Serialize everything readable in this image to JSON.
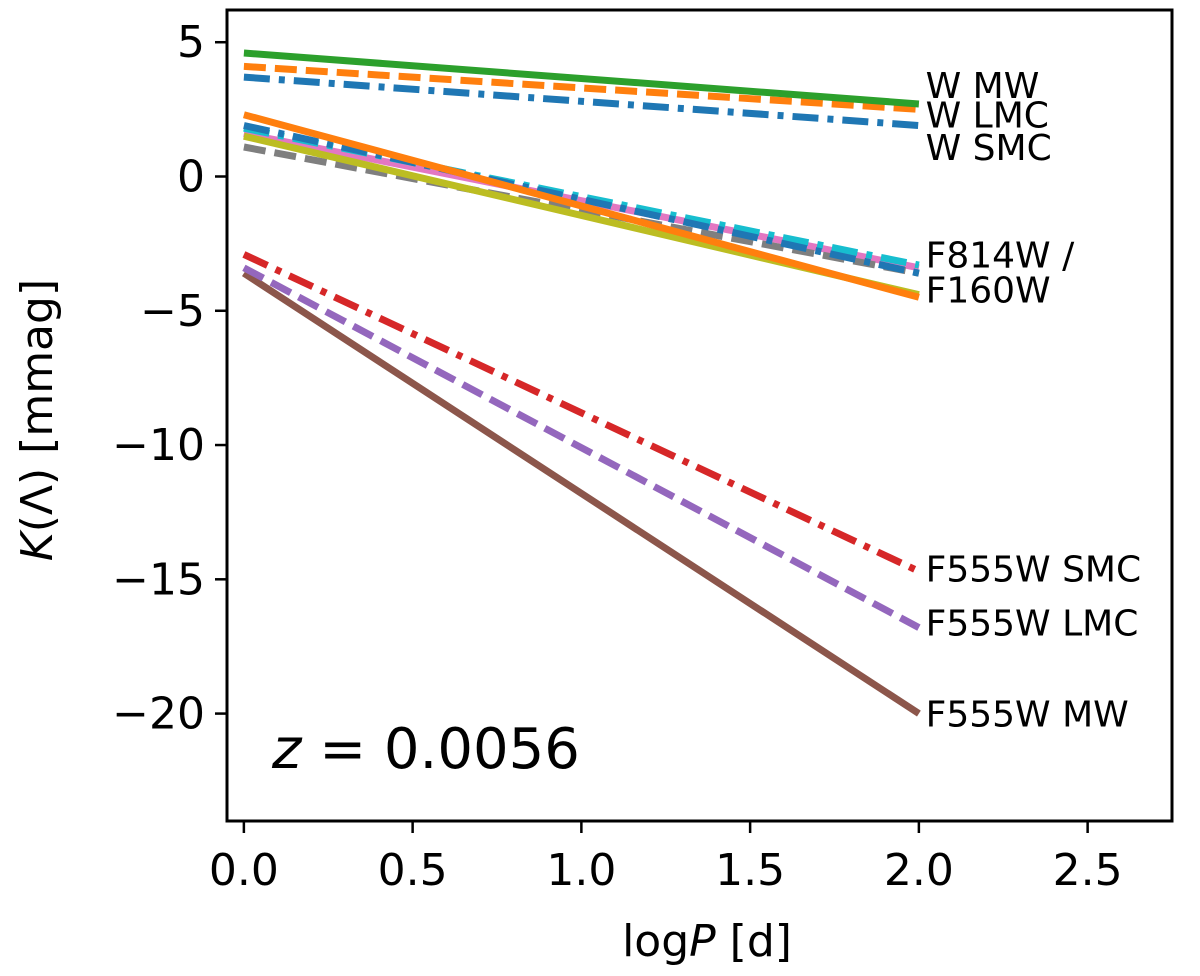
{
  "chart_data": {
    "type": "line",
    "title": "",
    "xlabel_main": "log",
    "xlabel_var": "P",
    "xlabel_unit": " [d]",
    "ylabel_var": "K",
    "ylabel_rest": "(Λ) [mmag]",
    "xlim": [
      -0.05,
      2.75
    ],
    "ylim": [
      -24,
      6.2
    ],
    "xticks": [
      0.0,
      0.5,
      1.0,
      1.5,
      2.0,
      2.5
    ],
    "xtick_labels": [
      "0.0",
      "0.5",
      "1.0",
      "1.5",
      "2.0",
      "2.5"
    ],
    "yticks": [
      5,
      0,
      -5,
      -10,
      -15,
      -20
    ],
    "ytick_labels": [
      "5",
      "0",
      "−5",
      "−10",
      "−15",
      "−20"
    ],
    "annotation": {
      "var": "z",
      "text": " = 0.0056"
    },
    "series": [
      {
        "name": "F555W MW",
        "color": "#8c564b",
        "dash": "solid",
        "x": [
          0.0,
          2.0
        ],
        "y": [
          -3.6,
          -20.0
        ]
      },
      {
        "name": "F555W LMC",
        "color": "#9467bd",
        "dash": "dashed",
        "x": [
          0.0,
          2.0
        ],
        "y": [
          -3.4,
          -16.8
        ]
      },
      {
        "name": "F555W SMC",
        "color": "#d62728",
        "dash": "dashdot",
        "x": [
          0.0,
          2.0
        ],
        "y": [
          -2.9,
          -14.7
        ]
      },
      {
        "name": "F814W MW",
        "color": "#e377c2",
        "dash": "solid",
        "x": [
          0.0,
          2.0
        ],
        "y": [
          1.6,
          -3.4
        ]
      },
      {
        "name": "F814W LMC",
        "color": "#7f7f7f",
        "dash": "dashed",
        "x": [
          0.0,
          2.0
        ],
        "y": [
          1.1,
          -3.6
        ]
      },
      {
        "name": "F814W SMC",
        "color": "#17becf",
        "dash": "dashdot",
        "x": [
          0.0,
          2.0
        ],
        "y": [
          1.8,
          -3.3
        ]
      },
      {
        "name": "F160W SMC",
        "color": "#1f77b4",
        "dash": "dashdot",
        "x": [
          0.0,
          2.0
        ],
        "y": [
          1.9,
          -3.6
        ]
      },
      {
        "name": "F160W MW",
        "color": "#bcbd22",
        "dash": "solid",
        "x": [
          0.0,
          2.0
        ],
        "y": [
          1.5,
          -4.4
        ]
      },
      {
        "name": "F160W LMC",
        "color": "#ff7f0e",
        "dash": "solid",
        "x": [
          0.0,
          2.0
        ],
        "y": [
          2.3,
          -4.5
        ]
      },
      {
        "name": "W SMC",
        "color": "#1f77b4",
        "dash": "dashdot",
        "x": [
          0.0,
          2.0
        ],
        "y": [
          3.7,
          1.9
        ]
      },
      {
        "name": "W LMC",
        "color": "#ff7f0e",
        "dash": "dashed",
        "x": [
          0.0,
          2.0
        ],
        "y": [
          4.1,
          2.5
        ]
      },
      {
        "name": "W MW",
        "color": "#2ca02c",
        "dash": "solid",
        "x": [
          0.0,
          2.0
        ],
        "y": [
          4.6,
          2.7
        ]
      }
    ],
    "line_labels": [
      {
        "text": "W MW",
        "x": 2.02,
        "y": 3.4
      },
      {
        "text": "W LMC",
        "x": 2.02,
        "y": 2.3
      },
      {
        "text": "W SMC",
        "x": 2.02,
        "y": 1.1
      },
      {
        "text": "F814W /",
        "x": 2.02,
        "y": -2.9
      },
      {
        "text": "F160W",
        "x": 2.02,
        "y": -4.2
      },
      {
        "text": "F555W SMC",
        "x": 2.02,
        "y": -14.6
      },
      {
        "text": "F555W LMC",
        "x": 2.02,
        "y": -16.6
      },
      {
        "text": "F555W MW",
        "x": 2.02,
        "y": -20.0
      }
    ]
  }
}
